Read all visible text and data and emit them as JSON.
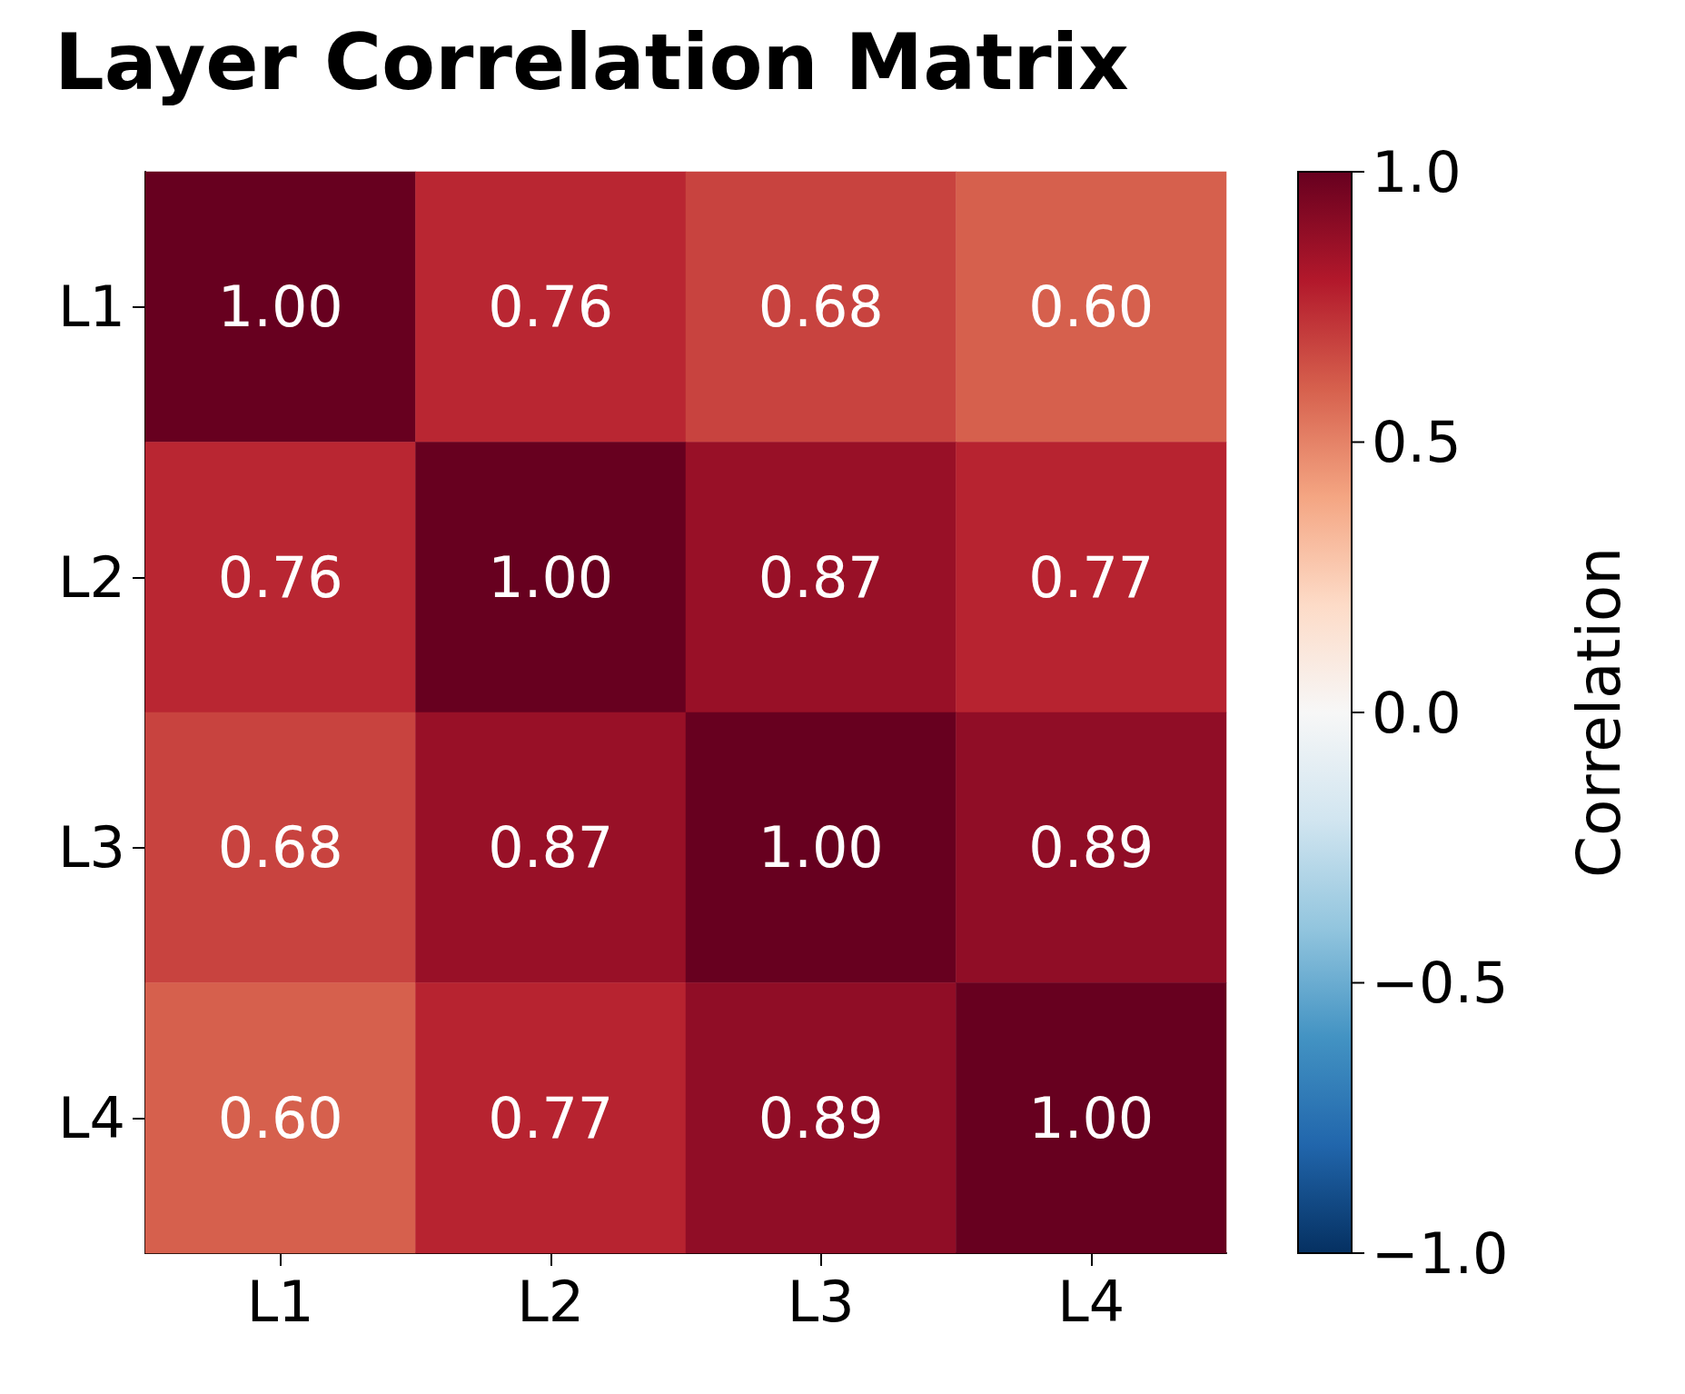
{
  "chart_data": {
    "type": "heatmap",
    "title": "Layer Correlation Matrix",
    "clabel": "Correlation",
    "categories": [
      "L1",
      "L2",
      "L3",
      "L4"
    ],
    "y_categories": [
      "L1",
      "L2",
      "L3",
      "L4"
    ],
    "cells": [
      [
        1.0,
        0.76,
        0.68,
        0.6
      ],
      [
        0.76,
        1.0,
        0.87,
        0.77
      ],
      [
        0.68,
        0.87,
        1.0,
        0.89
      ],
      [
        0.6,
        0.77,
        0.89,
        1.0
      ]
    ],
    "cell_labels": [
      [
        "1.00",
        "0.76",
        "0.68",
        "0.60"
      ],
      [
        "0.76",
        "1.00",
        "0.87",
        "0.77"
      ],
      [
        "0.68",
        "0.87",
        "1.00",
        "0.89"
      ],
      [
        "0.60",
        "0.77",
        "0.89",
        "1.00"
      ]
    ],
    "clim": [
      -1,
      1
    ],
    "cticks": [
      {
        "value": -1,
        "label": "−1.0"
      },
      {
        "value": -0.5,
        "label": "−0.5"
      },
      {
        "value": 0,
        "label": "0.0"
      },
      {
        "value": 0.5,
        "label": "0.5"
      },
      {
        "value": 1,
        "label": "1.0"
      }
    ]
  }
}
